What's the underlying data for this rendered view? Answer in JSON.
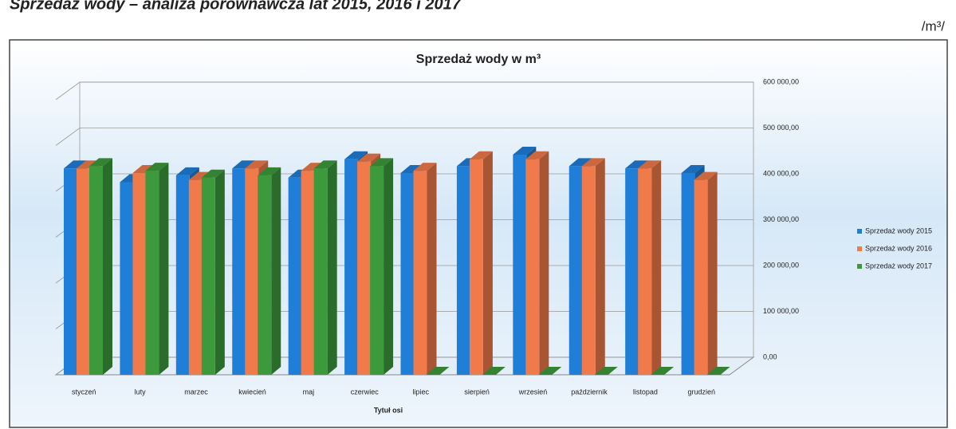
{
  "heading": "Sprzedaż wody – analiza porównawcza lat 2015, 2016 i 2017",
  "unit": "/m³/",
  "chart_data": {
    "type": "bar3d",
    "title": "Sprzedaż wody w m³",
    "x_label": "Tytuł osi",
    "categories": [
      "styczeń",
      "luty",
      "marzec",
      "kwiecień",
      "maj",
      "czerwiec",
      "lipiec",
      "sierpień",
      "wrzesień",
      "październik",
      "listopad",
      "grudzień"
    ],
    "series": [
      {
        "name": "Sprzedaż wody 2015",
        "color": "#1f7fd8",
        "values": [
          450000,
          420000,
          435000,
          450000,
          430000,
          470000,
          440000,
          455000,
          480000,
          455000,
          450000,
          440000
        ]
      },
      {
        "name": "Sprzedaż wody 2016",
        "color": "#f07a4a",
        "values": [
          450000,
          440000,
          425000,
          450000,
          445000,
          465000,
          445000,
          470000,
          470000,
          455000,
          450000,
          425000
        ]
      },
      {
        "name": "Sprzedaż wody 2017",
        "color": "#3c9a3c",
        "values": [
          455000,
          445000,
          430000,
          435000,
          450000,
          455000,
          0,
          0,
          0,
          0,
          0,
          0
        ]
      }
    ],
    "ylim": [
      0,
      600000
    ],
    "yticks": [
      {
        "value": 0,
        "label": "0,00"
      },
      {
        "value": 100000,
        "label": "100 000,00"
      },
      {
        "value": 200000,
        "label": "200 000,00"
      },
      {
        "value": 300000,
        "label": "300 000,00"
      },
      {
        "value": 400000,
        "label": "400 000,00"
      },
      {
        "value": 500000,
        "label": "500 000,00"
      },
      {
        "value": 600000,
        "label": "600 000,00"
      }
    ],
    "grid": true,
    "legend": "right"
  }
}
